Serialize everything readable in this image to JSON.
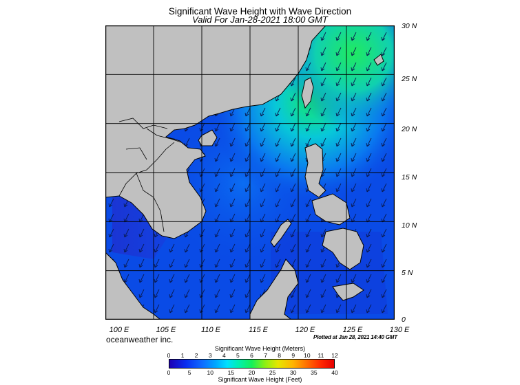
{
  "header": {
    "title": "Significant Wave Height with Wave Direction",
    "subtitle": "Valid For Jan-28-2021 18:00 GMT"
  },
  "map": {
    "lon_range": [
      100,
      130
    ],
    "lat_range": [
      0,
      30
    ],
    "lon_labels": [
      "100 E",
      "105 E",
      "110 E",
      "115 E",
      "120 E",
      "125 E",
      "130 E"
    ],
    "lat_labels": [
      "30 N",
      "25 N",
      "20 N",
      "15 N",
      "10 N",
      "5 N",
      "0"
    ],
    "land_color": "#c0c0c0",
    "open_ocean_color": "#0a4be6",
    "high_wave_color": "#14e678",
    "arrow_direction": "southwest"
  },
  "footer": {
    "credit": "oceanweather inc.",
    "plotted": "Plotted at Jan 28, 2021 14:40 GMT"
  },
  "colorbar": {
    "title_meters": "Significant Wave Height (Meters)",
    "title_feet": "Significant Wave Height (Feet)",
    "meters": [
      "0",
      "1",
      "2",
      "3",
      "4",
      "5",
      "6",
      "7",
      "8",
      "9",
      "10",
      "11",
      "12"
    ],
    "feet": [
      "0",
      "5",
      "10",
      "15",
      "20",
      "25",
      "30",
      "35",
      "40"
    ]
  }
}
